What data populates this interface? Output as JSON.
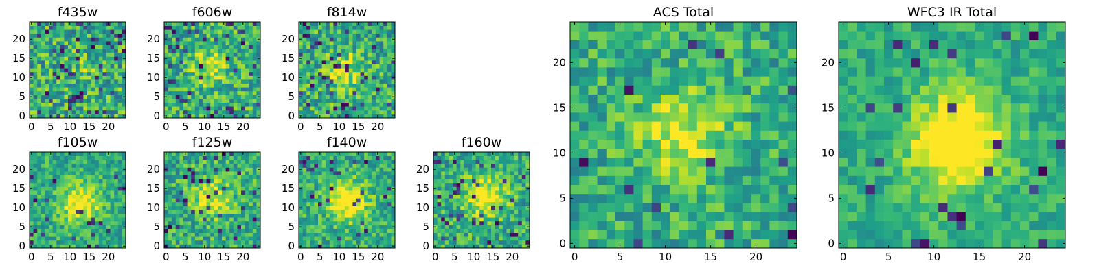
{
  "figure": {
    "type": "heatmap",
    "colormap": "viridis"
  },
  "chart_data": [
    {
      "type": "heatmap",
      "id": "f435w",
      "title": "f435w",
      "grid": [
        25,
        25
      ],
      "x_ticks": [
        "0",
        "5",
        "10",
        "15",
        "20"
      ],
      "y_ticks": [
        "0",
        "5",
        "10",
        "15",
        "20"
      ],
      "xlim": [
        0,
        24
      ],
      "ylim": [
        0,
        24
      ],
      "center_peak": 0.1,
      "noise": 0.55,
      "dark_fraction": 0.09
    },
    {
      "type": "heatmap",
      "id": "f606w",
      "title": "f606w",
      "grid": [
        25,
        25
      ],
      "x_ticks": [
        "0",
        "5",
        "10",
        "15",
        "20"
      ],
      "y_ticks": [
        "0",
        "5",
        "10",
        "15",
        "20"
      ],
      "xlim": [
        0,
        24
      ],
      "ylim": [
        0,
        24
      ],
      "center_peak": 0.25,
      "noise": 0.5,
      "dark_fraction": 0.07
    },
    {
      "type": "heatmap",
      "id": "f814w",
      "title": "f814w",
      "grid": [
        25,
        25
      ],
      "x_ticks": [
        "0",
        "5",
        "10",
        "15",
        "20"
      ],
      "y_ticks": [
        "0",
        "5",
        "10",
        "15",
        "20"
      ],
      "xlim": [
        0,
        24
      ],
      "ylim": [
        0,
        24
      ],
      "center_peak": 0.3,
      "noise": 0.5,
      "dark_fraction": 0.07
    },
    {
      "type": "heatmap",
      "id": "f105w",
      "title": "f105w",
      "grid": [
        25,
        25
      ],
      "x_ticks": [
        "0",
        "5",
        "10",
        "15",
        "20"
      ],
      "y_ticks": [
        "0",
        "5",
        "10",
        "15",
        "20"
      ],
      "xlim": [
        0,
        24
      ],
      "ylim": [
        0,
        24
      ],
      "center_peak": 0.45,
      "noise": 0.35,
      "dark_fraction": 0.04
    },
    {
      "type": "heatmap",
      "id": "f125w",
      "title": "f125w",
      "grid": [
        25,
        25
      ],
      "x_ticks": [
        "0",
        "5",
        "10",
        "15",
        "20"
      ],
      "y_ticks": [
        "0",
        "5",
        "10",
        "15",
        "20"
      ],
      "xlim": [
        0,
        24
      ],
      "ylim": [
        0,
        24
      ],
      "center_peak": 0.35,
      "noise": 0.45,
      "dark_fraction": 0.06
    },
    {
      "type": "heatmap",
      "id": "f140w",
      "title": "f140w",
      "grid": [
        25,
        25
      ],
      "x_ticks": [
        "0",
        "5",
        "10",
        "15",
        "20"
      ],
      "y_ticks": [
        "0",
        "5",
        "10",
        "15",
        "20"
      ],
      "xlim": [
        0,
        24
      ],
      "ylim": [
        0,
        24
      ],
      "center_peak": 0.5,
      "noise": 0.4,
      "dark_fraction": 0.06
    },
    {
      "type": "heatmap",
      "id": "f160w",
      "title": "f160w",
      "grid": [
        25,
        25
      ],
      "x_ticks": [
        "0",
        "5",
        "10",
        "15",
        "20"
      ],
      "y_ticks": [
        "0",
        "5",
        "10",
        "15",
        "20"
      ],
      "xlim": [
        0,
        24
      ],
      "ylim": [
        0,
        24
      ],
      "center_peak": 0.45,
      "noise": 0.45,
      "dark_fraction": 0.07
    },
    {
      "type": "heatmap",
      "id": "acs-total",
      "title": "ACS Total",
      "grid": [
        25,
        25
      ],
      "x_ticks": [
        "0",
        "5",
        "10",
        "15",
        "20"
      ],
      "y_ticks": [
        "0",
        "5",
        "10",
        "15",
        "20"
      ],
      "xlim": [
        0,
        24
      ],
      "ylim": [
        0,
        24
      ],
      "center_peak": 0.35,
      "noise": 0.4,
      "dark_fraction": 0.03
    },
    {
      "type": "heatmap",
      "id": "wfc3-ir-total",
      "title": "WFC3 IR Total",
      "grid": [
        25,
        25
      ],
      "x_ticks": [
        "0",
        "5",
        "10",
        "15",
        "20"
      ],
      "y_ticks": [
        "0",
        "5",
        "10",
        "15",
        "20"
      ],
      "xlim": [
        0,
        24
      ],
      "ylim": [
        0,
        24
      ],
      "center_peak": 0.6,
      "noise": 0.28,
      "dark_fraction": 0.02
    }
  ]
}
